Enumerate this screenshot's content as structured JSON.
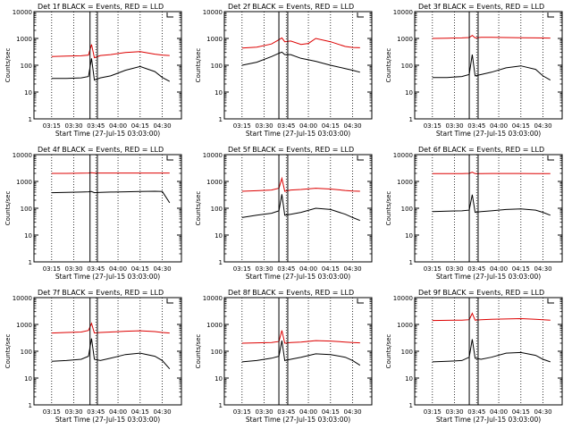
{
  "figure": {
    "ylabel": "Counts/sec",
    "xlabel": "Start Time (27-Jul-15 03:03:00)",
    "title_suffix": "BLACK = Events, RED = LLD",
    "colors": {
      "events": "#000000",
      "lld": "#dd0000",
      "axes": "#000000",
      "background": "#ffffff"
    }
  },
  "chart_data": [
    {
      "type": "line",
      "detector": "Det 1f",
      "title": "Det 1f BLACK = Events, RED = LLD",
      "xlabel": "Start Time (27-Jul-15 03:03:00)",
      "ylabel": "Counts/sec",
      "yscale": "log",
      "ylim": [
        1,
        10000
      ],
      "xlim": [
        "03:03",
        "04:43"
      ],
      "x_ticks": [
        "03:15",
        "03:30",
        "03:45",
        "04:00",
        "04:15",
        "04:30"
      ],
      "y_ticks": [
        "1",
        "10",
        "100",
        "1000",
        "10000"
      ],
      "vertical_lines_time": [
        "03:41",
        "03:46"
      ],
      "series": [
        {
          "name": "Events",
          "color": "#000000",
          "x": [
            "03:15",
            "03:25",
            "03:35",
            "03:40",
            "03:42",
            "03:44",
            "03:48",
            "03:55",
            "04:05",
            "04:15",
            "04:25",
            "04:30",
            "04:35"
          ],
          "values": [
            32,
            32,
            34,
            38,
            180,
            28,
            34,
            40,
            65,
            90,
            58,
            35,
            25
          ]
        },
        {
          "name": "LLD",
          "color": "#dd0000",
          "x": [
            "03:15",
            "03:25",
            "03:35",
            "03:40",
            "03:42",
            "03:44",
            "03:48",
            "03:55",
            "04:05",
            "04:15",
            "04:25",
            "04:30",
            "04:35"
          ],
          "values": [
            210,
            220,
            225,
            240,
            600,
            190,
            230,
            250,
            300,
            320,
            260,
            240,
            230
          ]
        }
      ]
    },
    {
      "type": "line",
      "detector": "Det 2f",
      "title": "Det 2f BLACK = Events, RED = LLD",
      "xlabel": "Start Time (27-Jul-15 03:03:00)",
      "ylabel": "Counts/sec",
      "yscale": "log",
      "ylim": [
        1,
        10000
      ],
      "xlim": [
        "03:03",
        "04:43"
      ],
      "x_ticks": [
        "03:15",
        "03:30",
        "03:45",
        "04:00",
        "04:15",
        "04:30"
      ],
      "y_ticks": [
        "1",
        "10",
        "100",
        "1000",
        "10000"
      ],
      "vertical_lines_time": [
        "03:40",
        "03:46"
      ],
      "series": [
        {
          "name": "Events",
          "color": "#000000",
          "x": [
            "03:15",
            "03:25",
            "03:35",
            "03:40",
            "03:42",
            "03:44",
            "03:48",
            "03:55",
            "04:00",
            "04:05",
            "04:15",
            "04:25",
            "04:30",
            "04:35"
          ],
          "values": [
            100,
            130,
            210,
            280,
            310,
            250,
            250,
            180,
            160,
            140,
            100,
            75,
            65,
            55
          ]
        },
        {
          "name": "LLD",
          "color": "#dd0000",
          "x": [
            "03:15",
            "03:25",
            "03:35",
            "03:40",
            "03:42",
            "03:44",
            "03:48",
            "03:55",
            "04:00",
            "04:05",
            "04:15",
            "04:25",
            "04:30",
            "04:35"
          ],
          "values": [
            440,
            470,
            620,
            900,
            1050,
            750,
            800,
            600,
            650,
            1000,
            750,
            500,
            460,
            450
          ]
        }
      ]
    },
    {
      "type": "line",
      "detector": "Det 3f",
      "title": "Det 3f BLACK = Events, RED = LLD",
      "xlabel": "Start Time (27-Jul-15 03:03:00)",
      "ylabel": "Counts/sec",
      "yscale": "log",
      "ylim": [
        1,
        10000
      ],
      "xlim": [
        "03:03",
        "04:43"
      ],
      "x_ticks": [
        "03:15",
        "03:30",
        "03:45",
        "04:00",
        "04:15",
        "04:30"
      ],
      "y_ticks": [
        "1",
        "10",
        "100",
        "1000",
        "10000"
      ],
      "vertical_lines_time": [
        "03:40",
        "03:46"
      ],
      "series": [
        {
          "name": "Events",
          "color": "#000000",
          "x": [
            "03:15",
            "03:25",
            "03:35",
            "03:40",
            "03:42",
            "03:44",
            "03:48",
            "03:55",
            "04:05",
            "04:15",
            "04:25",
            "04:30",
            "04:35"
          ],
          "values": [
            35,
            35,
            38,
            45,
            250,
            40,
            45,
            55,
            80,
            95,
            70,
            40,
            28
          ]
        },
        {
          "name": "LLD",
          "color": "#dd0000",
          "x": [
            "03:15",
            "03:25",
            "03:35",
            "03:40",
            "03:42",
            "03:44",
            "03:48",
            "03:55",
            "04:05",
            "04:15",
            "04:25",
            "04:30",
            "04:35"
          ],
          "values": [
            1000,
            1020,
            1050,
            1080,
            1300,
            1050,
            1100,
            1100,
            1080,
            1060,
            1050,
            1040,
            1030
          ]
        }
      ]
    },
    {
      "type": "line",
      "detector": "Det 4f",
      "title": "Det 4f BLACK = Events, RED = LLD",
      "xlabel": "Start Time (27-Jul-15 03:03:00)",
      "ylabel": "Counts/sec",
      "yscale": "log",
      "ylim": [
        1,
        10000
      ],
      "xlim": [
        "03:03",
        "04:43"
      ],
      "x_ticks": [
        "03:15",
        "03:30",
        "03:45",
        "04:00",
        "04:15",
        "04:30"
      ],
      "y_ticks": [
        "1",
        "10",
        "100",
        "1000",
        "10000"
      ],
      "vertical_lines_time": [
        "03:41",
        "03:46"
      ],
      "series": [
        {
          "name": "Events",
          "color": "#000000",
          "x": [
            "03:15",
            "03:25",
            "03:35",
            "03:40",
            "03:42",
            "03:44",
            "03:48",
            "03:55",
            "04:05",
            "04:15",
            "04:25",
            "04:30",
            "04:35"
          ],
          "values": [
            380,
            390,
            400,
            410,
            420,
            380,
            390,
            400,
            410,
            420,
            430,
            420,
            160
          ]
        },
        {
          "name": "LLD",
          "color": "#dd0000",
          "x": [
            "03:15",
            "03:25",
            "03:35",
            "03:40",
            "03:42",
            "03:44",
            "03:48",
            "03:55",
            "04:05",
            "04:15",
            "04:25",
            "04:30",
            "04:35"
          ],
          "values": [
            2000,
            2000,
            2020,
            2050,
            2100,
            2050,
            2050,
            2050,
            2050,
            2050,
            2050,
            2050,
            2050
          ]
        }
      ]
    },
    {
      "type": "line",
      "detector": "Det 5f",
      "title": "Det 5f BLACK = Events, RED = LLD",
      "xlabel": "Start Time (27-Jul-15 03:03:00)",
      "ylabel": "Counts/sec",
      "yscale": "log",
      "ylim": [
        1,
        10000
      ],
      "xlim": [
        "03:03",
        "04:43"
      ],
      "x_ticks": [
        "03:15",
        "03:30",
        "03:45",
        "04:00",
        "04:15",
        "04:30"
      ],
      "y_ticks": [
        "1",
        "10",
        "100",
        "1000",
        "10000"
      ],
      "vertical_lines_time": [
        "03:40",
        "03:46"
      ],
      "series": [
        {
          "name": "Events",
          "color": "#000000",
          "x": [
            "03:15",
            "03:25",
            "03:35",
            "03:40",
            "03:42",
            "03:44",
            "03:48",
            "03:55",
            "04:05",
            "04:15",
            "04:25",
            "04:30",
            "04:35"
          ],
          "values": [
            45,
            55,
            65,
            80,
            330,
            55,
            60,
            70,
            100,
            90,
            60,
            45,
            35
          ]
        },
        {
          "name": "LLD",
          "color": "#dd0000",
          "x": [
            "03:15",
            "03:25",
            "03:35",
            "03:40",
            "03:42",
            "03:44",
            "03:48",
            "03:55",
            "04:05",
            "04:15",
            "04:25",
            "04:30",
            "04:35"
          ],
          "values": [
            430,
            450,
            480,
            560,
            1300,
            430,
            480,
            500,
            560,
            520,
            460,
            440,
            430
          ]
        }
      ]
    },
    {
      "type": "line",
      "detector": "Det 6f",
      "title": "Det 6f BLACK = Events, RED = LLD",
      "xlabel": "Start Time (27-Jul-15 03:03:00)",
      "ylabel": "Counts/sec",
      "yscale": "log",
      "ylim": [
        1,
        10000
      ],
      "xlim": [
        "03:03",
        "04:43"
      ],
      "x_ticks": [
        "03:15",
        "03:30",
        "03:45",
        "04:00",
        "04:15",
        "04:30"
      ],
      "y_ticks": [
        "1",
        "10",
        "100",
        "1000",
        "10000"
      ],
      "vertical_lines_time": [
        "03:40",
        "03:46"
      ],
      "series": [
        {
          "name": "Events",
          "color": "#000000",
          "x": [
            "03:15",
            "03:25",
            "03:35",
            "03:40",
            "03:42",
            "03:44",
            "03:48",
            "03:55",
            "04:05",
            "04:15",
            "04:25",
            "04:30",
            "04:35"
          ],
          "values": [
            75,
            78,
            80,
            85,
            320,
            70,
            75,
            80,
            90,
            95,
            85,
            70,
            55
          ]
        },
        {
          "name": "LLD",
          "color": "#dd0000",
          "x": [
            "03:15",
            "03:25",
            "03:35",
            "03:40",
            "03:42",
            "03:44",
            "03:48",
            "03:55",
            "04:05",
            "04:15",
            "04:25",
            "04:30",
            "04:35"
          ],
          "values": [
            1950,
            1950,
            1970,
            2000,
            2200,
            1950,
            1970,
            1980,
            1980,
            1980,
            1970,
            1960,
            1950
          ]
        }
      ]
    },
    {
      "type": "line",
      "detector": "Det 7f",
      "title": "Det 7f BLACK = Events, RED = LLD",
      "xlabel": "Start Time (27-Jul-15 03:03:00)",
      "ylabel": "Counts/sec",
      "yscale": "log",
      "ylim": [
        1,
        10000
      ],
      "xlim": [
        "03:03",
        "04:43"
      ],
      "x_ticks": [
        "03:15",
        "03:30",
        "03:45",
        "04:00",
        "04:15",
        "04:30"
      ],
      "y_ticks": [
        "1",
        "10",
        "100",
        "1000",
        "10000"
      ],
      "vertical_lines_time": [
        "03:41",
        "03:46"
      ],
      "series": [
        {
          "name": "Events",
          "color": "#000000",
          "x": [
            "03:15",
            "03:25",
            "03:35",
            "03:40",
            "03:42",
            "03:44",
            "03:48",
            "03:55",
            "04:05",
            "04:15",
            "04:25",
            "04:30",
            "04:35"
          ],
          "values": [
            42,
            45,
            50,
            65,
            300,
            50,
            45,
            55,
            75,
            85,
            65,
            45,
            22
          ]
        },
        {
          "name": "LLD",
          "color": "#dd0000",
          "x": [
            "03:15",
            "03:25",
            "03:35",
            "03:40",
            "03:42",
            "03:44",
            "03:48",
            "03:55",
            "04:05",
            "04:15",
            "04:25",
            "04:30",
            "04:35"
          ],
          "values": [
            480,
            500,
            520,
            600,
            1100,
            480,
            500,
            520,
            560,
            580,
            540,
            500,
            480
          ]
        }
      ]
    },
    {
      "type": "line",
      "detector": "Det 8f",
      "title": "Det 8f BLACK = Events, RED = LLD",
      "xlabel": "Start Time (27-Jul-15 03:03:00)",
      "ylabel": "Counts/sec",
      "yscale": "log",
      "ylim": [
        1,
        10000
      ],
      "xlim": [
        "03:03",
        "04:43"
      ],
      "x_ticks": [
        "03:15",
        "03:30",
        "03:45",
        "04:00",
        "04:15",
        "04:30"
      ],
      "y_ticks": [
        "1",
        "10",
        "100",
        "1000",
        "10000"
      ],
      "vertical_lines_time": [
        "03:40",
        "03:46"
      ],
      "series": [
        {
          "name": "Events",
          "color": "#000000",
          "x": [
            "03:15",
            "03:25",
            "03:35",
            "03:40",
            "03:42",
            "03:44",
            "03:48",
            "03:55",
            "04:05",
            "04:15",
            "04:25",
            "04:30",
            "04:35"
          ],
          "values": [
            40,
            45,
            55,
            65,
            250,
            45,
            50,
            60,
            80,
            75,
            60,
            45,
            30
          ]
        },
        {
          "name": "LLD",
          "color": "#dd0000",
          "x": [
            "03:15",
            "03:25",
            "03:35",
            "03:40",
            "03:42",
            "03:44",
            "03:48",
            "03:55",
            "04:05",
            "04:15",
            "04:25",
            "04:30",
            "04:35"
          ],
          "values": [
            200,
            205,
            210,
            230,
            600,
            200,
            210,
            220,
            250,
            240,
            220,
            210,
            205
          ]
        }
      ]
    },
    {
      "type": "line",
      "detector": "Det 9f",
      "title": "Det 9f BLACK = Events, RED = LLD",
      "xlabel": "Start Time (27-Jul-15 03:03:00)",
      "ylabel": "Counts/sec",
      "yscale": "log",
      "ylim": [
        1,
        10000
      ],
      "xlim": [
        "03:03",
        "04:43"
      ],
      "x_ticks": [
        "03:15",
        "03:30",
        "03:45",
        "04:00",
        "04:15",
        "04:30"
      ],
      "y_ticks": [
        "1",
        "10",
        "100",
        "1000",
        "10000"
      ],
      "vertical_lines_time": [
        "03:40",
        "03:46"
      ],
      "series": [
        {
          "name": "Events",
          "color": "#000000",
          "x": [
            "03:15",
            "03:25",
            "03:35",
            "03:40",
            "03:42",
            "03:44",
            "03:48",
            "03:55",
            "04:05",
            "04:15",
            "04:25",
            "04:30",
            "04:35"
          ],
          "values": [
            40,
            42,
            45,
            60,
            280,
            55,
            50,
            60,
            85,
            90,
            70,
            50,
            40
          ]
        },
        {
          "name": "LLD",
          "color": "#dd0000",
          "x": [
            "03:15",
            "03:25",
            "03:35",
            "03:40",
            "03:42",
            "03:44",
            "03:48",
            "03:55",
            "04:05",
            "04:15",
            "04:25",
            "04:30",
            "04:35"
          ],
          "values": [
            1400,
            1420,
            1450,
            1500,
            2600,
            1450,
            1500,
            1550,
            1600,
            1650,
            1550,
            1500,
            1450
          ]
        }
      ]
    }
  ]
}
